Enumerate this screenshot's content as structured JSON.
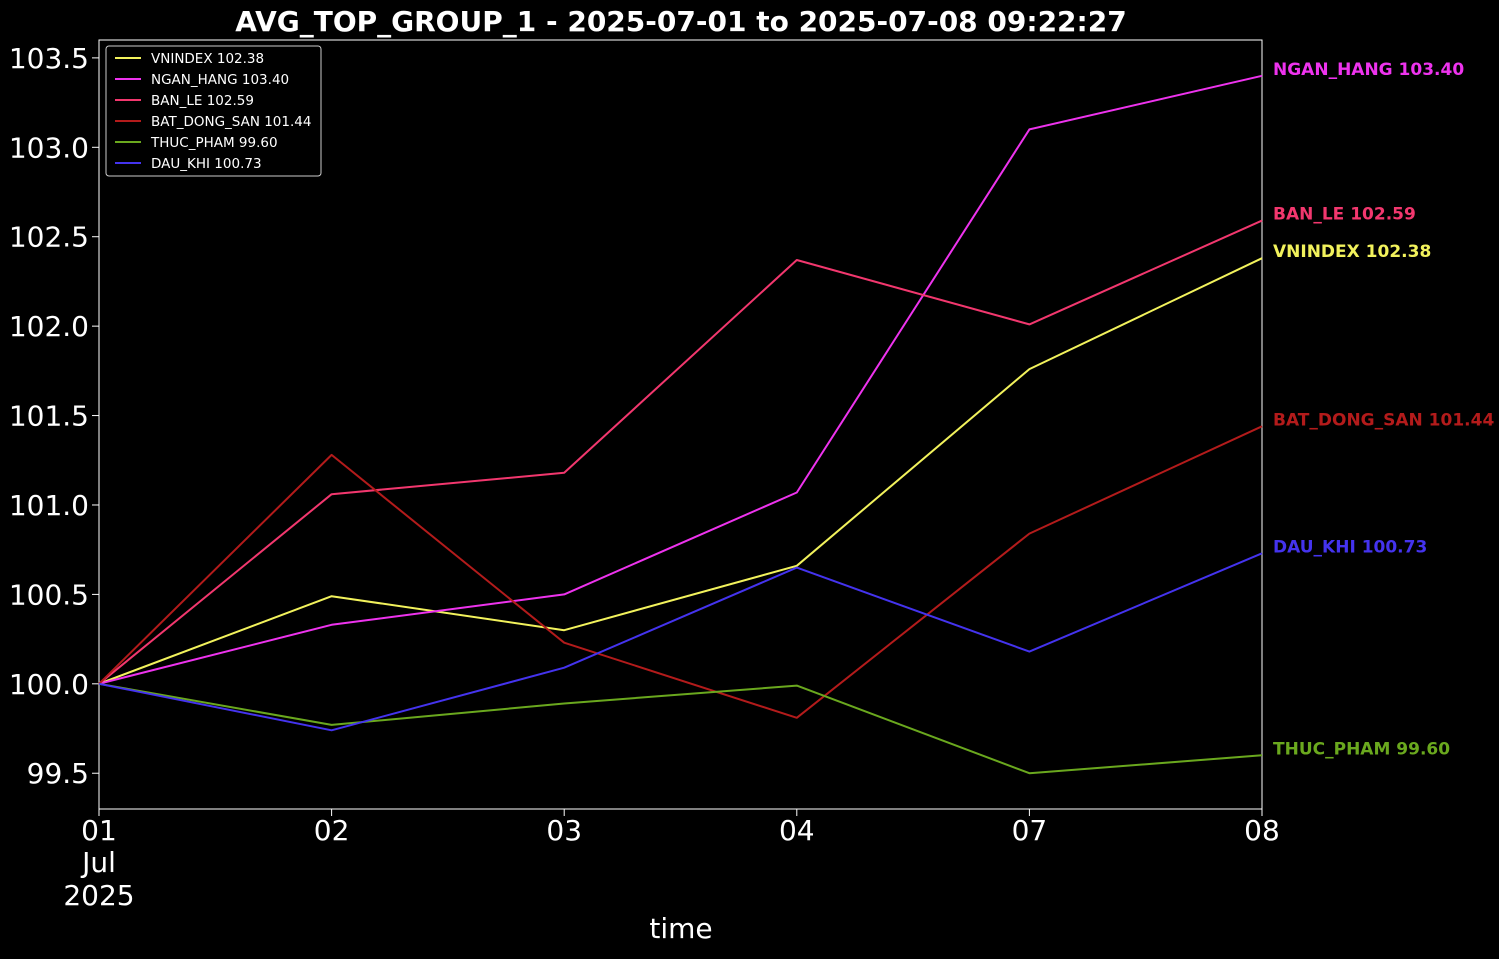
{
  "chart_data": {
    "type": "line",
    "title": "AVG_TOP_GROUP_1 - 2025-07-01 to 2025-07-08 09:22:27",
    "xlabel": "time",
    "ylabel": "",
    "x": [
      "2025-07-01",
      "2025-07-02",
      "2025-07-03",
      "2025-07-04",
      "2025-07-07",
      "2025-07-08"
    ],
    "x_tick_labels": [
      "01",
      "02",
      "03",
      "04",
      "07",
      "08"
    ],
    "x_tick_sublabels": [
      "Jul",
      "2025"
    ],
    "y_ticks": [
      "99.5",
      "100.0",
      "100.5",
      "101.0",
      "101.5",
      "102.0",
      "102.5",
      "103.0",
      "103.5"
    ],
    "ylim": [
      99.3,
      103.6
    ],
    "grid": false,
    "legend_position": "top-left",
    "background_color": "#000000",
    "text_color": "#ffffff",
    "series": [
      {
        "name": "VNINDEX",
        "legend_label": "VNINDEX 102.38",
        "end_label": "VNINDEX 102.38",
        "color": "#f2f25c",
        "values": [
          100.0,
          100.49,
          100.3,
          100.66,
          101.76,
          102.38
        ]
      },
      {
        "name": "NGAN_HANG",
        "legend_label": "NGAN_HANG 103.40",
        "end_label": "NGAN_HANG 103.40",
        "color": "#ee33ee",
        "values": [
          100.0,
          100.33,
          100.5,
          101.07,
          103.1,
          103.4
        ]
      },
      {
        "name": "BAN_LE",
        "legend_label": "BAN_LE 102.59",
        "end_label": "BAN_LE 102.59",
        "color": "#f2376e",
        "values": [
          100.0,
          101.06,
          101.18,
          102.37,
          102.01,
          102.59
        ]
      },
      {
        "name": "BAT_DONG_SAN",
        "legend_label": "BAT_DONG_SAN 101.44",
        "end_label": "BAT_DONG_SAN 101.44",
        "color": "#b31b1b",
        "values": [
          100.0,
          101.28,
          100.23,
          99.81,
          100.84,
          101.44
        ]
      },
      {
        "name": "THUC_PHAM",
        "legend_label": "THUC_PHAM 99.60",
        "end_label": "THUC_PHAM 99.60",
        "color": "#6aa81e",
        "values": [
          100.0,
          99.77,
          99.89,
          99.99,
          99.5,
          99.6
        ]
      },
      {
        "name": "DAU_KHI",
        "legend_label": "DAU_KHI 100.73",
        "end_label": "DAU_KHI 100.73",
        "color": "#4433ee",
        "values": [
          100.0,
          99.74,
          100.09,
          100.65,
          100.18,
          100.73
        ]
      }
    ]
  }
}
